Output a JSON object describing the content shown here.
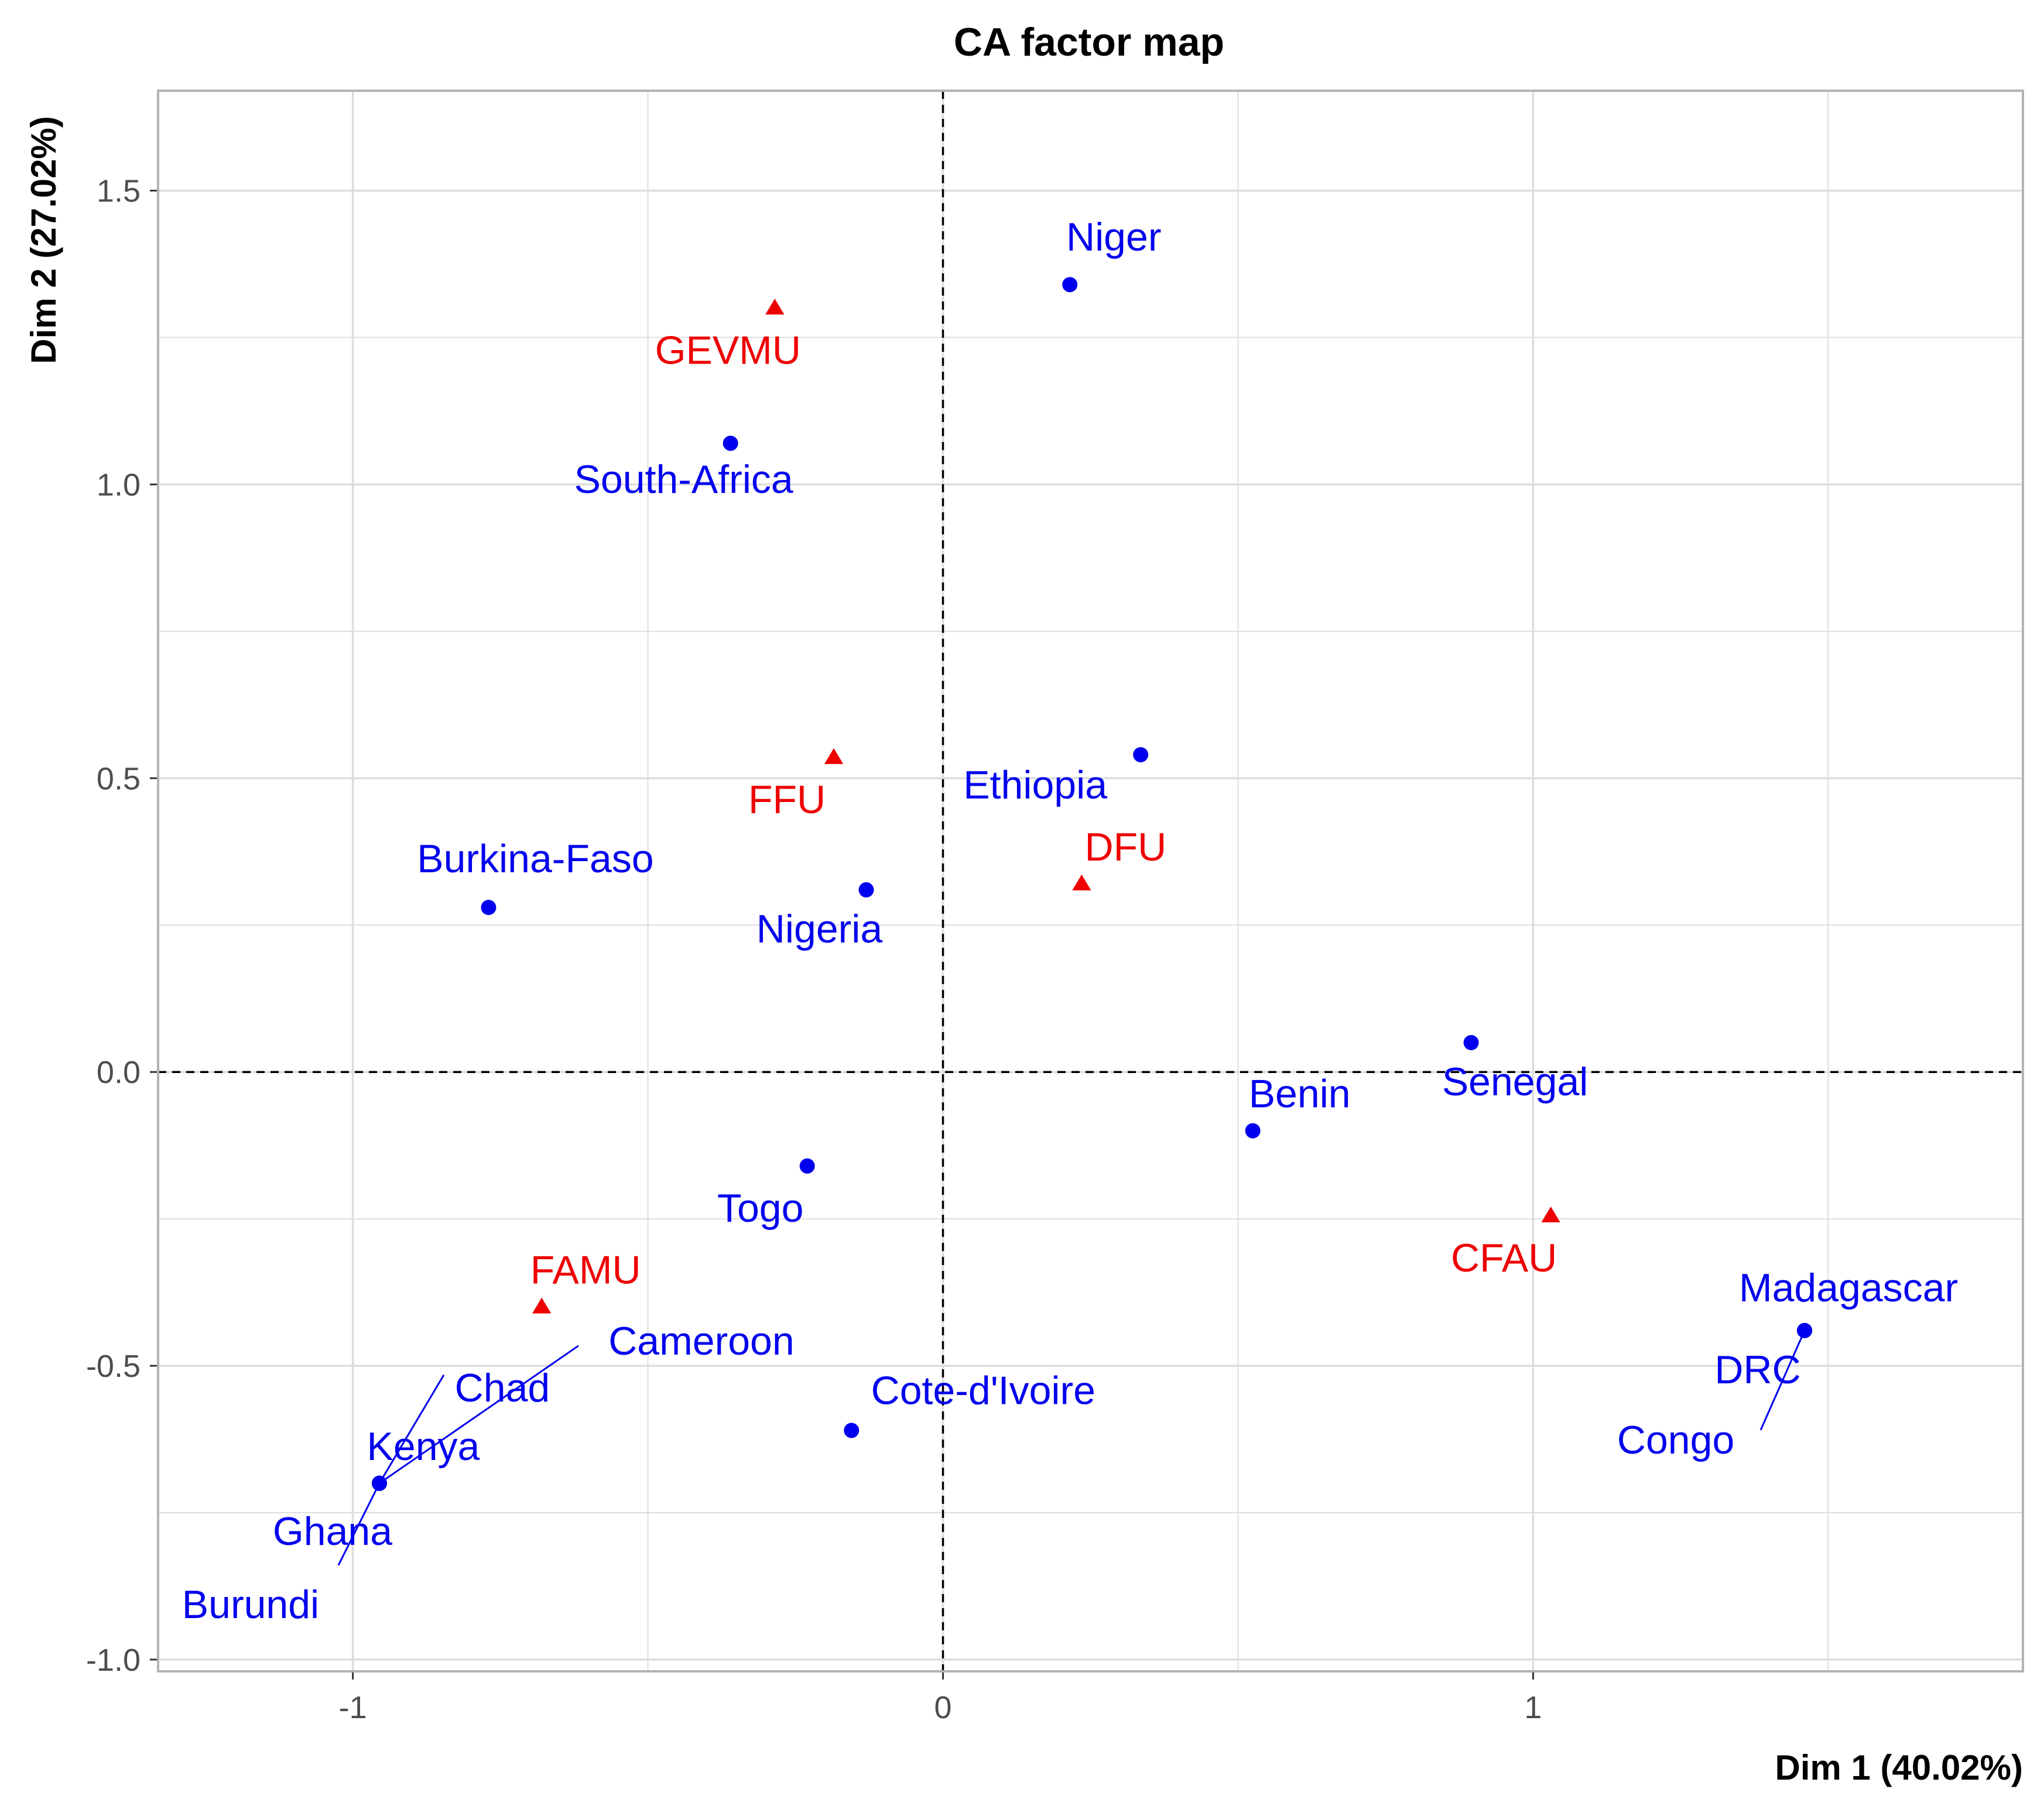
{
  "chart_data": {
    "type": "scatter",
    "title": "CA factor map",
    "xlabel": "Dim 1 (40.02%)",
    "ylabel": "Dim 2 (27.02%)",
    "xlim": [
      -1.33,
      1.83
    ],
    "ylim": [
      -1.02,
      1.67
    ],
    "x_ticks": [
      -1,
      0,
      1
    ],
    "x_tick_labels": [
      "-1",
      "0",
      "1"
    ],
    "y_ticks": [
      -1.0,
      -0.5,
      0.0,
      0.5,
      1.0,
      1.5
    ],
    "y_tick_labels": [
      "-1.0",
      "-0.5",
      "0.0",
      "0.5",
      "1.0",
      "1.5"
    ],
    "grid": true,
    "reference_lines": "dashed at x=0 and y=0",
    "colors": {
      "rows": "#0000ee",
      "columns": "#ee0000",
      "grid": "#dddddd",
      "frame": "#b3b3b3",
      "text": "#000000",
      "ticks": "#4d4d4d"
    },
    "series": [
      {
        "shape": "circle",
        "color": "#0000ee",
        "points": [
          {
            "label": "Niger",
            "x": 0.215,
            "y": 1.34
          },
          {
            "label": "South-Africa",
            "x": -0.36,
            "y": 1.07
          },
          {
            "label": "Ethiopia",
            "x": 0.335,
            "y": 0.54
          },
          {
            "label": "Burkina-Faso",
            "x": -0.77,
            "y": 0.28
          },
          {
            "label": "Nigeria",
            "x": -0.13,
            "y": 0.31
          },
          {
            "label": "Senegal",
            "x": 0.895,
            "y": 0.05
          },
          {
            "label": "Benin",
            "x": 0.525,
            "y": -0.1
          },
          {
            "label": "Togo",
            "x": -0.23,
            "y": -0.16
          },
          {
            "label": "Madagascar",
            "x": 1.46,
            "y": -0.44
          },
          {
            "label": "DRC",
            "x": 1.46,
            "y": -0.44
          },
          {
            "label": "Congo",
            "x": 1.46,
            "y": -0.44
          },
          {
            "label": "Cote-d'Ivoire",
            "x": -0.155,
            "y": -0.61
          },
          {
            "label": "Cameroon",
            "x": -0.955,
            "y": -0.7
          },
          {
            "label": "Chad",
            "x": -0.955,
            "y": -0.7
          },
          {
            "label": "Kenya",
            "x": -0.955,
            "y": -0.7
          },
          {
            "label": "Ghana",
            "x": -0.955,
            "y": -0.7
          },
          {
            "label": "Burundi",
            "x": -0.955,
            "y": -0.7
          }
        ]
      },
      {
        "shape": "triangle",
        "color": "#ee0000",
        "points": [
          {
            "label": "GEVMU",
            "x": -0.285,
            "y": 1.3
          },
          {
            "label": "FFU",
            "x": -0.185,
            "y": 0.535
          },
          {
            "label": "DFU",
            "x": 0.235,
            "y": 0.32
          },
          {
            "label": "CFAU",
            "x": 1.03,
            "y": -0.245
          },
          {
            "label": "FAMU",
            "x": -0.68,
            "y": -0.4
          }
        ]
      }
    ]
  }
}
